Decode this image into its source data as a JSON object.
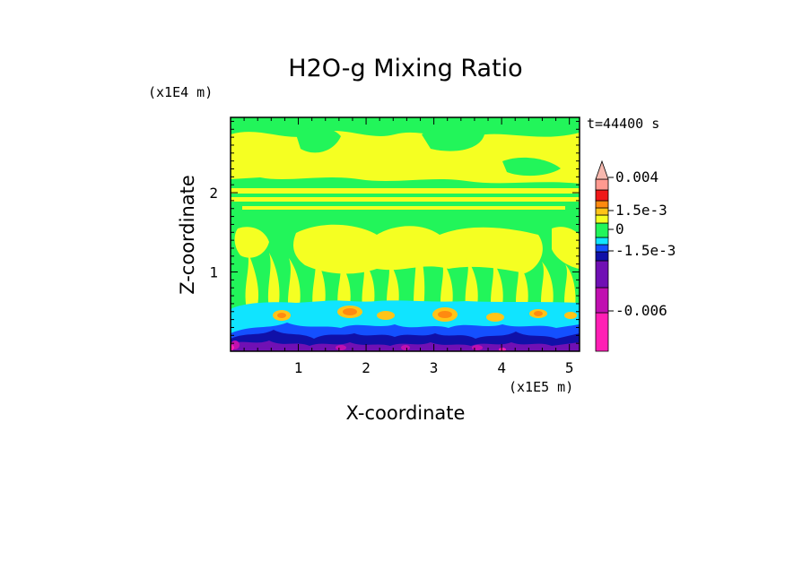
{
  "chart_data": {
    "type": "heatmap",
    "title": "H2O-g Mixing Ratio",
    "xlabel": "X-coordinate",
    "ylabel": "Z-coordinate",
    "x_scale_label": "(x1E5 m)",
    "y_scale_label": "(x1E4 m)",
    "time_label": "t=44400 s",
    "x_ticks": [
      "1",
      "2",
      "3",
      "4",
      "5"
    ],
    "x_tick_values": [
      1,
      2,
      3,
      4,
      5
    ],
    "y_ticks": [
      "1",
      "2"
    ],
    "y_tick_values": [
      1,
      2
    ],
    "xlim": [
      0,
      5.15
    ],
    "ylim": [
      0,
      2.95
    ],
    "colorbar": {
      "labels": [
        "0.004",
        "1.5e-3",
        "0",
        "-1.5e-3",
        "-0.006"
      ],
      "label_values": [
        0.004,
        0.0015,
        0,
        -0.0015,
        -0.006
      ],
      "levels": [
        {
          "name": "magenta",
          "color": "#ff1fb4"
        },
        {
          "name": "purple-red",
          "color": "#c010b0"
        },
        {
          "name": "violet",
          "color": "#7010b4"
        },
        {
          "name": "deep-blue",
          "color": "#1010a8"
        },
        {
          "name": "blue",
          "color": "#1450ff"
        },
        {
          "name": "cyan",
          "color": "#10e4ff"
        },
        {
          "name": "green",
          "color": "#22f55a"
        },
        {
          "name": "yellow",
          "color": "#f5ff22"
        },
        {
          "name": "amber",
          "color": "#ffc418"
        },
        {
          "name": "orange",
          "color": "#ff8a10"
        },
        {
          "name": "red",
          "color": "#f01818"
        },
        {
          "name": "salmon",
          "color": "#ff9a90"
        },
        {
          "name": "pale-pink",
          "color": "#f6b8ae"
        }
      ]
    },
    "regions": [
      {
        "band": "upper layer z 2.0-2.8",
        "dominant": "yellow",
        "secondary": "green"
      },
      {
        "band": "mid layer z 0.7-2.0",
        "dominant": "green",
        "secondary": "yellow plumes"
      },
      {
        "band": "moist layer z 0.4-0.65",
        "dominant": "cyan",
        "secondary": "orange cores"
      },
      {
        "band": "surface layer z 0-0.4",
        "dominant": "deep-blue",
        "secondary": "violet, magenta"
      }
    ]
  }
}
